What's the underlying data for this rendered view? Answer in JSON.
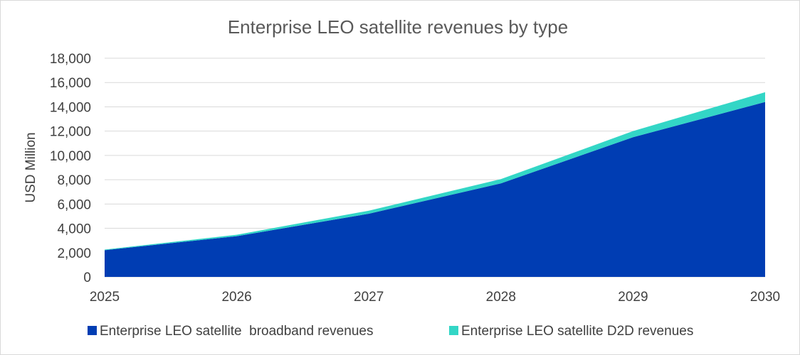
{
  "chart_data": {
    "type": "area",
    "stacked": true,
    "title": "Enterprise LEO satellite revenues by type",
    "ylabel": "USD Million",
    "xlabel": "",
    "x": [
      "2025",
      "2026",
      "2027",
      "2028",
      "2029",
      "2030"
    ],
    "ylim": [
      0,
      18000
    ],
    "yticks": [
      0,
      2000,
      4000,
      6000,
      8000,
      10000,
      12000,
      14000,
      16000,
      18000
    ],
    "ytick_labels": [
      "0",
      "2,000",
      "4,000",
      "6,000",
      "8,000",
      "10,000",
      "12,000",
      "14,000",
      "16,000",
      "18,000"
    ],
    "grid": true,
    "legend_position": "bottom",
    "series": [
      {
        "name": "Enterprise LEO satellite  broadband revenues",
        "color": "#003DB3",
        "values": [
          2200,
          3350,
          5200,
          7700,
          11500,
          14400
        ]
      },
      {
        "name": "Enterprise LEO satellite D2D revenues",
        "color": "#33D6C6",
        "values": [
          50,
          120,
          250,
          350,
          500,
          800
        ]
      }
    ]
  }
}
